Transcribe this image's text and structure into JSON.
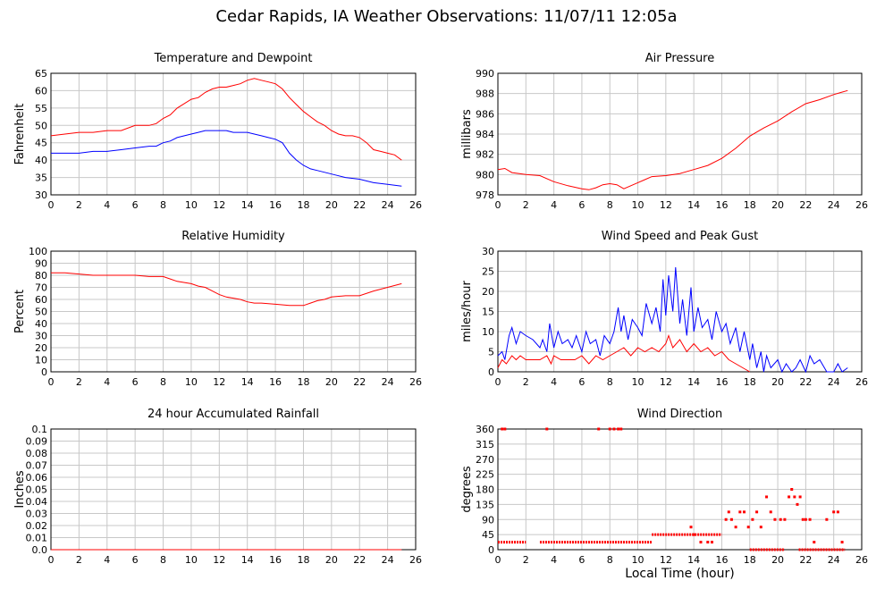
{
  "page_title": "Cedar Rapids, IA Weather Observations: 11/07/11 12:05a",
  "xlabel": "Local Time (hour)",
  "colors": {
    "red": "#ff0000",
    "blue": "#0000ff",
    "grid": "#c8c8c8"
  },
  "chart_data": [
    {
      "id": "temp",
      "type": "line",
      "title": "Temperature and Dewpoint",
      "ylabel": "Fahrenheit",
      "xlim": [
        0,
        26
      ],
      "ylim": [
        30,
        65
      ],
      "xticks": [
        "0",
        "2",
        "4",
        "6",
        "8",
        "10",
        "12",
        "14",
        "16",
        "18",
        "20",
        "22",
        "24",
        "26"
      ],
      "yticks": [
        "30",
        "35",
        "40",
        "45",
        "50",
        "55",
        "60",
        "65"
      ],
      "series": [
        {
          "color": "#ff0000",
          "x": [
            0,
            1,
            2,
            3,
            4,
            5,
            6,
            7,
            7.5,
            8,
            8.5,
            9,
            10,
            10.5,
            11,
            11.5,
            12,
            12.5,
            13,
            13.5,
            14,
            14.5,
            15,
            15.5,
            16,
            16.5,
            17,
            17.5,
            18,
            18.5,
            19,
            19.5,
            20,
            20.5,
            21,
            21.5,
            22,
            22.5,
            23,
            23.5,
            24,
            24.5,
            25
          ],
          "y": [
            47,
            47.5,
            48,
            48,
            48.5,
            48.5,
            50,
            50,
            50.5,
            52,
            53,
            55,
            57.5,
            58,
            59.5,
            60.5,
            61,
            61,
            61.5,
            62,
            63,
            63.5,
            63,
            62.5,
            62,
            60.5,
            58,
            56,
            54,
            52.5,
            51,
            50,
            48.5,
            47.5,
            47,
            47,
            46.5,
            45,
            43,
            42.5,
            42,
            41.5,
            40
          ]
        },
        {
          "color": "#0000ff",
          "x": [
            0,
            1,
            2,
            3,
            4,
            5,
            6,
            7,
            7.5,
            8,
            8.5,
            9,
            10,
            10.5,
            11,
            11.5,
            12,
            12.5,
            13,
            13.5,
            14,
            14.5,
            15,
            15.5,
            16,
            16.5,
            17,
            17.5,
            18,
            18.5,
            19,
            20,
            21,
            22,
            23,
            24,
            25
          ],
          "y": [
            42,
            42,
            42,
            42.5,
            42.5,
            43,
            43.5,
            44,
            44,
            45,
            45.5,
            46.5,
            47.5,
            48,
            48.5,
            48.5,
            48.5,
            48.5,
            48,
            48,
            48,
            47.5,
            47,
            46.5,
            46,
            45,
            42,
            40,
            38.5,
            37.5,
            37,
            36,
            35,
            34.5,
            33.5,
            33,
            32.5
          ]
        }
      ]
    },
    {
      "id": "pressure",
      "type": "line",
      "title": "Air Pressure",
      "ylabel": "millibars",
      "xlim": [
        0,
        26
      ],
      "ylim": [
        978,
        990
      ],
      "xticks": [
        "0",
        "2",
        "4",
        "6",
        "8",
        "10",
        "12",
        "14",
        "16",
        "18",
        "20",
        "22",
        "24",
        "26"
      ],
      "yticks": [
        "978",
        "980",
        "982",
        "984",
        "986",
        "988",
        "990"
      ],
      "series": [
        {
          "color": "#ff0000",
          "x": [
            0,
            0.5,
            1,
            2,
            3,
            4,
            5,
            6,
            6.5,
            7,
            7.5,
            8,
            8.5,
            9,
            9.5,
            10,
            10.5,
            11,
            12,
            13,
            14,
            15,
            16,
            17,
            18,
            19,
            20,
            21,
            22,
            23,
            24,
            24.5,
            25
          ],
          "y": [
            980.5,
            980.6,
            980.2,
            980,
            979.9,
            979.3,
            978.9,
            978.6,
            978.5,
            978.7,
            979,
            979.1,
            979,
            978.6,
            978.9,
            979.2,
            979.5,
            979.8,
            979.9,
            980.1,
            980.5,
            980.9,
            981.6,
            982.6,
            983.8,
            984.6,
            985.3,
            986.2,
            987,
            987.4,
            987.9,
            988.1,
            988.3
          ]
        }
      ]
    },
    {
      "id": "humidity",
      "type": "line",
      "title": "Relative Humidity",
      "ylabel": "Percent",
      "xlim": [
        0,
        26
      ],
      "ylim": [
        0,
        100
      ],
      "xticks": [
        "0",
        "2",
        "4",
        "6",
        "8",
        "10",
        "12",
        "14",
        "16",
        "18",
        "20",
        "22",
        "24",
        "26"
      ],
      "yticks": [
        "0",
        "10",
        "20",
        "30",
        "40",
        "50",
        "60",
        "70",
        "80",
        "90",
        "100"
      ],
      "series": [
        {
          "color": "#ff0000",
          "x": [
            0,
            1,
            2,
            3,
            4,
            5,
            6,
            7,
            8,
            8.5,
            9,
            10,
            10.5,
            11,
            11.5,
            12,
            12.5,
            13,
            13.5,
            14,
            14.5,
            15,
            16,
            17,
            18,
            18.5,
            19,
            19.5,
            20,
            21,
            22,
            23,
            24,
            25
          ],
          "y": [
            82,
            82,
            81,
            80,
            80,
            80,
            80,
            79,
            79,
            77,
            75,
            73,
            71,
            70,
            67,
            64,
            62,
            61,
            60,
            58,
            57,
            57,
            56,
            55,
            55,
            57,
            59,
            60,
            62,
            63,
            63,
            67,
            70,
            73
          ]
        }
      ]
    },
    {
      "id": "wind",
      "type": "line",
      "title": "Wind Speed and Peak Gust",
      "ylabel": "miles/hour",
      "xlim": [
        0,
        26
      ],
      "ylim": [
        0,
        30
      ],
      "xticks": [
        "0",
        "2",
        "4",
        "6",
        "8",
        "10",
        "12",
        "14",
        "16",
        "18",
        "20",
        "22",
        "24",
        "26"
      ],
      "yticks": [
        "0",
        "5",
        "10",
        "15",
        "20",
        "25",
        "30"
      ],
      "series": [
        {
          "color": "#0000ff",
          "x": [
            0,
            0.3,
            0.5,
            0.8,
            1,
            1.3,
            1.6,
            2,
            2.5,
            3,
            3.2,
            3.5,
            3.7,
            4,
            4.3,
            4.6,
            5,
            5.3,
            5.6,
            6,
            6.3,
            6.6,
            7,
            7.3,
            7.6,
            8,
            8.3,
            8.6,
            8.8,
            9,
            9.3,
            9.6,
            10,
            10.3,
            10.6,
            11,
            11.3,
            11.6,
            11.8,
            12,
            12.2,
            12.5,
            12.7,
            13,
            13.2,
            13.5,
            13.8,
            14,
            14.3,
            14.6,
            15,
            15.3,
            15.6,
            16,
            16.3,
            16.6,
            17,
            17.3,
            17.6,
            18,
            18.2,
            18.5,
            18.8,
            19,
            19.2,
            19.5,
            20,
            20.3,
            20.6,
            21,
            21.3,
            21.6,
            22,
            22.3,
            22.6,
            23,
            23.5,
            24,
            24.3,
            24.6,
            25
          ],
          "y": [
            4,
            5,
            3,
            9,
            11,
            7,
            10,
            9,
            8,
            6,
            8,
            5,
            12,
            6,
            10,
            7,
            8,
            6,
            9,
            5,
            10,
            7,
            8,
            4,
            9,
            7,
            10,
            16,
            10,
            14,
            8,
            13,
            11,
            9,
            17,
            12,
            16,
            10,
            23,
            14,
            24,
            15,
            26,
            12,
            18,
            9,
            21,
            10,
            16,
            11,
            13,
            8,
            15,
            10,
            12,
            7,
            11,
            5,
            10,
            3,
            7,
            1,
            5,
            0,
            4,
            1,
            3,
            0,
            2,
            0,
            1,
            3,
            0,
            4,
            2,
            3,
            0,
            0,
            2,
            0,
            1
          ]
        },
        {
          "color": "#ff0000",
          "x": [
            0,
            0.3,
            0.6,
            1,
            1.3,
            1.6,
            2,
            2.5,
            3,
            3.5,
            3.8,
            4,
            4.5,
            5,
            5.5,
            6,
            6.5,
            7,
            7.5,
            8,
            8.5,
            9,
            9.5,
            10,
            10.5,
            11,
            11.5,
            12,
            12.2,
            12.5,
            13,
            13.5,
            14,
            14.5,
            15,
            15.5,
            16,
            16.5,
            17,
            17.5,
            18
          ],
          "y": [
            1,
            3,
            2,
            4,
            3,
            4,
            3,
            3,
            3,
            4,
            2,
            4,
            3,
            3,
            3,
            4,
            2,
            4,
            3,
            4,
            5,
            6,
            4,
            6,
            5,
            6,
            5,
            7,
            9,
            6,
            8,
            5,
            7,
            5,
            6,
            4,
            5,
            3,
            2,
            1,
            0
          ]
        }
      ]
    },
    {
      "id": "rain",
      "type": "line",
      "title": "24 hour Accumulated Rainfall",
      "ylabel": "Inches",
      "xlim": [
        0,
        26
      ],
      "ylim": [
        0,
        0.1
      ],
      "xticks": [
        "0",
        "2",
        "4",
        "6",
        "8",
        "10",
        "12",
        "14",
        "16",
        "18",
        "20",
        "22",
        "24",
        "26"
      ],
      "yticks": [
        "0.0",
        "0.01",
        "0.02",
        "0.03",
        "0.04",
        "0.05",
        "0.06",
        "0.07",
        "0.08",
        "0.09",
        "0.1"
      ],
      "series": [
        {
          "color": "#ff0000",
          "x": [
            0,
            25
          ],
          "y": [
            0,
            0
          ]
        }
      ]
    },
    {
      "id": "winddir",
      "type": "scatter",
      "title": "Wind Direction",
      "ylabel": "degrees",
      "xlim": [
        0,
        26
      ],
      "ylim": [
        0,
        360
      ],
      "xticks": [
        "0",
        "2",
        "4",
        "6",
        "8",
        "10",
        "12",
        "14",
        "16",
        "18",
        "20",
        "22",
        "24",
        "26"
      ],
      "yticks": [
        "0",
        "45",
        "90",
        "135",
        "180",
        "225",
        "270",
        "315",
        "360"
      ],
      "series": [
        {
          "color": "#ff0000",
          "segments": [
            {
              "x": [
                0,
                2
              ],
              "y": 22.5
            },
            {
              "x": [
                3,
                11
              ],
              "y": 22.5
            },
            {
              "x": [
                11,
                16
              ],
              "y": 45
            },
            {
              "x": [
                18,
                20.5
              ],
              "y": 0
            },
            {
              "x": [
                21.5,
                24.8
              ],
              "y": 0
            }
          ],
          "points": {
            "x": [
              0.3,
              0.5,
              3.5,
              7.2,
              8,
              8.3,
              8.6,
              8.8,
              13.8,
              14,
              14.5,
              15,
              15.3,
              16.3,
              16.5,
              16.7,
              17,
              17.3,
              17.6,
              17.9,
              18.2,
              18.5,
              18.8,
              19.2,
              19.5,
              19.8,
              20.2,
              20.5,
              20.8,
              21,
              21.2,
              21.4,
              21.6,
              21.8,
              22,
              22.3,
              22.6,
              23.5,
              24,
              24.3,
              24.6
            ],
            "y": [
              360,
              360,
              360,
              360,
              360,
              360,
              360,
              360,
              67.5,
              45,
              22.5,
              22.5,
              22.5,
              90,
              112.5,
              90,
              67.5,
              112.5,
              112.5,
              67.5,
              90,
              112.5,
              67.5,
              157.5,
              112.5,
              90,
              90,
              90,
              157.5,
              180,
              157.5,
              135,
              157.5,
              90,
              90,
              90,
              22.5,
              90,
              112.5,
              112.5,
              22.5
            ]
          }
        }
      ]
    }
  ]
}
